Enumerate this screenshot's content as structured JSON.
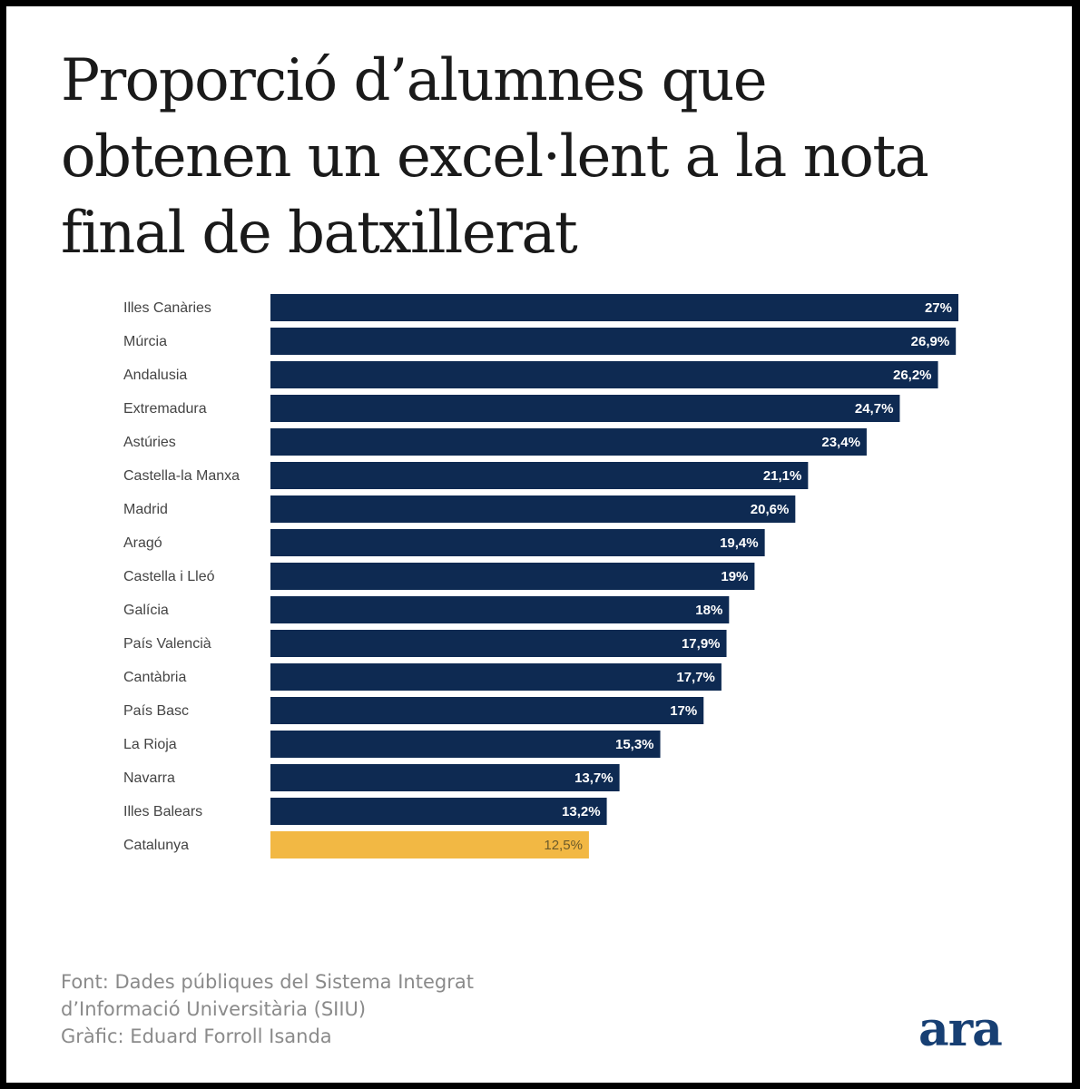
{
  "title_lines": [
    "Proporció d’alumnes que",
    "obtenen un excel·lent a la nota",
    "final de batxillerat"
  ],
  "chart_data": {
    "type": "bar",
    "orientation": "horizontal",
    "title": "Proporció d’alumnes que obtenen un excel·lent a la nota final de batxillerat",
    "categories": [
      "Illes Canàries",
      "Múrcia",
      "Andalusia",
      "Extremadura",
      "Astúries",
      "Castella-la Manxa",
      "Madrid",
      "Aragó",
      "Castella i Lleó",
      "Galícia",
      "País Valencià",
      "Cantàbria",
      "País Basc",
      "La Rioja",
      "Navarra",
      "Illes Balears",
      "Catalunya"
    ],
    "values": [
      27,
      26.9,
      26.2,
      24.7,
      23.4,
      21.1,
      20.6,
      19.4,
      19,
      18,
      17.9,
      17.7,
      17,
      15.3,
      13.7,
      13.2,
      12.5
    ],
    "value_labels": [
      "27%",
      "26,9%",
      "26,2%",
      "24,7%",
      "23,4%",
      "21,1%",
      "20,6%",
      "19,4%",
      "19%",
      "18%",
      "17,9%",
      "17,7%",
      "17%",
      "15,3%",
      "13,7%",
      "13,2%",
      "12,5%"
    ],
    "unit": "%",
    "xlim": [
      0,
      27
    ],
    "highlight": "Catalunya",
    "grid": false,
    "legend": "none"
  },
  "colors": {
    "bar": "#0e2a52",
    "highlight": "#f2b844",
    "background": "#ffffff",
    "logo": "#173f73"
  },
  "footer": {
    "source_line1": "Font: Dades públiques del Sistema Integrat",
    "source_line2": "d’Informació Universitària (SIIU)",
    "credit": "Gràfic: Eduard Forroll Isanda"
  },
  "logo": "ara"
}
